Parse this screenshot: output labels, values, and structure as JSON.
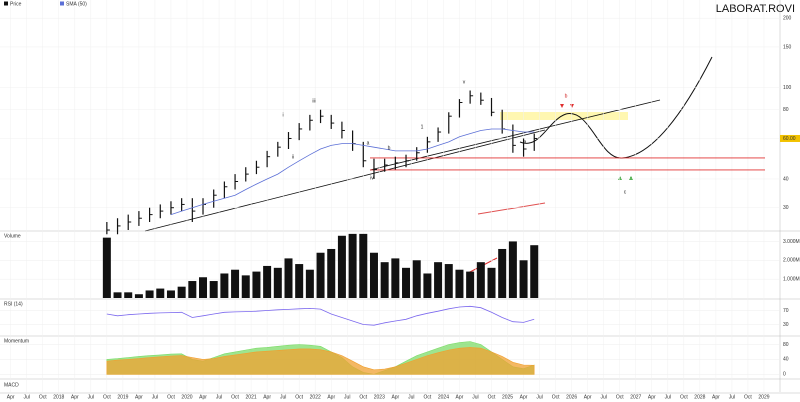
{
  "chart_data": {
    "type": "ohlc",
    "title": "LABORAT.ROVI",
    "log_scale": true,
    "grid": true,
    "x": [
      "2018-10",
      "2018-12",
      "2019-02",
      "2019-04",
      "2019-06",
      "2019-08",
      "2019-10",
      "2019-12",
      "2020-02",
      "2020-04",
      "2020-06",
      "2020-08",
      "2020-10",
      "2020-12",
      "2021-02",
      "2021-04",
      "2021-06",
      "2021-08",
      "2021-10",
      "2021-12",
      "2022-02",
      "2022-04",
      "2022-06",
      "2022-08",
      "2022-10",
      "2022-12",
      "2023-02",
      "2023-04",
      "2023-06",
      "2023-08",
      "2023-10",
      "2023-12",
      "2024-02",
      "2024-04",
      "2024-06",
      "2024-08",
      "2024-10",
      "2024-12",
      "2025-02",
      "2025-04",
      "2025-06"
    ],
    "series": [
      {
        "name": "Price",
        "color": "#111111",
        "high": [
          26,
          27,
          28,
          29,
          30,
          31,
          32,
          33,
          33,
          33,
          36,
          39,
          42,
          45,
          48,
          53,
          58,
          64,
          70,
          76,
          80,
          76,
          71,
          65,
          58,
          49,
          49,
          50,
          51,
          55,
          61,
          67,
          78,
          89,
          97,
          95,
          90,
          80,
          69,
          60,
          63
        ],
        "low": [
          23,
          23,
          24,
          25,
          26,
          27,
          28,
          29,
          26,
          28,
          30,
          33,
          36,
          39,
          42,
          45,
          50,
          54,
          59,
          65,
          70,
          66,
          60,
          53,
          45,
          40,
          43,
          44,
          45,
          48,
          52,
          58,
          63,
          74,
          85,
          84,
          75,
          63,
          52,
          50,
          53
        ],
        "values": [
          24,
          25,
          26,
          27,
          28,
          29,
          30,
          31,
          29,
          31,
          34,
          37,
          39,
          42,
          45,
          50,
          55,
          60,
          66,
          72,
          75,
          70,
          65,
          57,
          48,
          44,
          46,
          47,
          48,
          52,
          58,
          64,
          75,
          86,
          92,
          88,
          78,
          66,
          56,
          54,
          60
        ]
      },
      {
        "name": "SMA (50)",
        "color": "#5b6fd6",
        "values": [
          null,
          null,
          null,
          null,
          null,
          null,
          28,
          29,
          30,
          31,
          32,
          33,
          34,
          36,
          38,
          40,
          42,
          45,
          48,
          51,
          54,
          56,
          57,
          57,
          56,
          55,
          54,
          53,
          53,
          53,
          54,
          56,
          58,
          61,
          63,
          65,
          66,
          66,
          65,
          64,
          64
        ]
      }
    ],
    "xlim": [
      "2017-02",
      "2029-04"
    ],
    "xticks": [
      {
        "value": "2017-04",
        "label": "Apr"
      },
      {
        "value": "2017-07",
        "label": "Jul"
      },
      {
        "value": "2017-10",
        "label": "Oct"
      },
      {
        "value": "2018-01",
        "label": "2018"
      },
      {
        "value": "2018-04",
        "label": "Apr"
      },
      {
        "value": "2018-07",
        "label": "Jul"
      },
      {
        "value": "2018-10",
        "label": "Oct"
      },
      {
        "value": "2019-01",
        "label": "2019"
      },
      {
        "value": "2019-04",
        "label": "Apr"
      },
      {
        "value": "2019-07",
        "label": "Jul"
      },
      {
        "value": "2019-10",
        "label": "Oct"
      },
      {
        "value": "2020-01",
        "label": "2020"
      },
      {
        "value": "2020-04",
        "label": "Apr"
      },
      {
        "value": "2020-07",
        "label": "Jul"
      },
      {
        "value": "2020-10",
        "label": "Oct"
      },
      {
        "value": "2021-01",
        "label": "2021"
      },
      {
        "value": "2021-04",
        "label": "Apr"
      },
      {
        "value": "2021-07",
        "label": "Jul"
      },
      {
        "value": "2021-10",
        "label": "Oct"
      },
      {
        "value": "2022-01",
        "label": "2022"
      },
      {
        "value": "2022-04",
        "label": "Apr"
      },
      {
        "value": "2022-07",
        "label": "Jul"
      },
      {
        "value": "2022-10",
        "label": "Oct"
      },
      {
        "value": "2023-01",
        "label": "2023"
      },
      {
        "value": "2023-04",
        "label": "Apr"
      },
      {
        "value": "2023-07",
        "label": "Jul"
      },
      {
        "value": "2023-10",
        "label": "Oct"
      },
      {
        "value": "2024-01",
        "label": "2024"
      },
      {
        "value": "2024-04",
        "label": "Apr"
      },
      {
        "value": "2024-07",
        "label": "Jul"
      },
      {
        "value": "2024-10",
        "label": "Oct"
      },
      {
        "value": "2025-01",
        "label": "2025"
      },
      {
        "value": "2025-04",
        "label": "Apr"
      },
      {
        "value": "2025-07",
        "label": "Jul"
      },
      {
        "value": "2025-10",
        "label": "Oct"
      },
      {
        "value": "2026-01",
        "label": "2026"
      },
      {
        "value": "2026-04",
        "label": "Apr"
      },
      {
        "value": "2026-07",
        "label": "Jul"
      },
      {
        "value": "2026-10",
        "label": "Oct"
      },
      {
        "value": "2027-01",
        "label": "2027"
      },
      {
        "value": "2027-04",
        "label": "Apr"
      },
      {
        "value": "2027-07",
        "label": "Jul"
      },
      {
        "value": "2027-10",
        "label": "Oct"
      },
      {
        "value": "2028-01",
        "label": "2028"
      },
      {
        "value": "2028-04",
        "label": "Apr"
      },
      {
        "value": "2028-07",
        "label": "Jul"
      },
      {
        "value": "2028-10",
        "label": "Oct"
      },
      {
        "value": "2029-01",
        "label": "2029"
      }
    ],
    "ylim": [
      24,
      240
    ],
    "yticks": [
      200,
      150,
      100,
      80,
      60,
      40,
      30
    ],
    "levels": {
      "color": "#e03030",
      "values": [
        49.4,
        43.8
      ]
    },
    "last_price_label": {
      "value": 60,
      "label": "60.00"
    },
    "annotations": [
      "i",
      "ii",
      "iii",
      "a",
      "b",
      "iv",
      "1",
      "v",
      "a",
      "b",
      "c"
    ],
    "volume": {
      "name": "Volume",
      "color": "#111111",
      "ylim": [
        0,
        3.5
      ],
      "yticks": [
        {
          "value": 3,
          "label": "3.000M"
        },
        {
          "value": 2,
          "label": "2.000M"
        },
        {
          "value": 1,
          "label": "1.000M"
        }
      ],
      "values": [
        3.2,
        0.3,
        0.3,
        0.2,
        0.4,
        0.5,
        0.4,
        0.6,
        0.9,
        1.1,
        0.9,
        1.3,
        1.5,
        1.2,
        1.4,
        1.7,
        1.6,
        2.1,
        1.8,
        1.5,
        2.4,
        2.6,
        3.3,
        3.4,
        3.4,
        2.4,
        1.9,
        2.1,
        1.6,
        2.0,
        1.3,
        1.9,
        1.8,
        1.5,
        1.4,
        1.9,
        1.6,
        2.6,
        3.0,
        2.0,
        2.8
      ]
    },
    "rsi": {
      "name": "RSI (14)",
      "color": "#7b68ee",
      "ylim": [
        0,
        100
      ],
      "yticks": [
        70,
        30
      ],
      "values": [
        60,
        55,
        58,
        60,
        62,
        63,
        64,
        65,
        50,
        55,
        60,
        65,
        66,
        67,
        68,
        70,
        72,
        73,
        75,
        76,
        74,
        60,
        50,
        40,
        30,
        28,
        35,
        40,
        45,
        55,
        62,
        68,
        75,
        80,
        82,
        78,
        65,
        50,
        38,
        36,
        45
      ]
    },
    "momentum": {
      "name": "Momentum",
      "ylim": [
        -10,
        100
      ],
      "yticks": [
        80,
        40,
        0
      ],
      "series": [
        {
          "name": "Fast",
          "color": "#7ddc6a",
          "values": [
            40,
            42,
            45,
            48,
            50,
            52,
            54,
            55,
            40,
            35,
            45,
            55,
            60,
            65,
            70,
            72,
            75,
            78,
            80,
            78,
            75,
            60,
            45,
            20,
            5,
            0,
            10,
            20,
            35,
            50,
            60,
            70,
            80,
            85,
            88,
            80,
            60,
            40,
            20,
            15,
            25
          ]
        },
        {
          "name": "Slow",
          "color": "#f0a030",
          "values": [
            35,
            38,
            40,
            42,
            45,
            47,
            49,
            50,
            45,
            40,
            42,
            48,
            52,
            56,
            60,
            62,
            64,
            66,
            68,
            68,
            66,
            60,
            50,
            35,
            20,
            12,
            14,
            20,
            30,
            40,
            50,
            58,
            65,
            70,
            72,
            70,
            60,
            48,
            32,
            25,
            24
          ]
        }
      ]
    },
    "macd_title": "MACD"
  }
}
